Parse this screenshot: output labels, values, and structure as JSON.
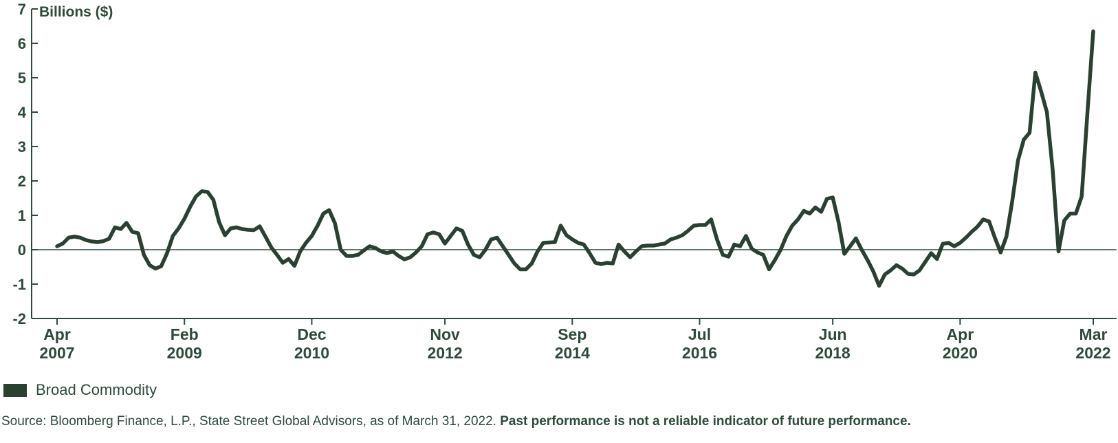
{
  "chart": {
    "axis_title": "Billions ($)"
  },
  "chart_data": {
    "type": "line",
    "title": "Billions ($)",
    "xlabel": "",
    "ylabel": "Billions ($)",
    "ylim": [
      -2,
      7
    ],
    "y_ticks": [
      7,
      6,
      5,
      4,
      3,
      2,
      1,
      0,
      -1,
      -2
    ],
    "grid": false,
    "legend_position": "bottom-left",
    "x_unit": "month",
    "x_range": "Apr 2007 - Mar 2022",
    "x_ticks": [
      {
        "month": "Apr",
        "year": "2007",
        "index": 0
      },
      {
        "month": "Feb",
        "year": "2009",
        "index": 22
      },
      {
        "month": "Dec",
        "year": "2010",
        "index": 44
      },
      {
        "month": "Nov",
        "year": "2012",
        "index": 67
      },
      {
        "month": "Sep",
        "year": "2014",
        "index": 89
      },
      {
        "month": "Jul",
        "year": "2016",
        "index": 111
      },
      {
        "month": "Jun",
        "year": "2018",
        "index": 134
      },
      {
        "month": "Apr",
        "year": "2020",
        "index": 156
      },
      {
        "month": "Mar",
        "year": "2022",
        "index": 179
      }
    ],
    "series": [
      {
        "name": "Broad Commodity",
        "color": "#2a4132",
        "values": [
          0.1,
          0.18,
          0.35,
          0.38,
          0.35,
          0.28,
          0.24,
          0.22,
          0.25,
          0.32,
          0.65,
          0.6,
          0.78,
          0.52,
          0.48,
          -0.15,
          -0.45,
          -0.55,
          -0.48,
          -0.1,
          0.4,
          0.62,
          0.9,
          1.25,
          1.55,
          1.7,
          1.68,
          1.45,
          0.8,
          0.42,
          0.62,
          0.65,
          0.6,
          0.58,
          0.57,
          0.68,
          0.38,
          0.07,
          -0.15,
          -0.38,
          -0.27,
          -0.47,
          -0.05,
          0.2,
          0.4,
          0.7,
          1.05,
          1.15,
          0.77,
          0.0,
          -0.18,
          -0.18,
          -0.15,
          -0.02,
          0.1,
          0.05,
          -0.05,
          -0.1,
          -0.05,
          -0.18,
          -0.28,
          -0.22,
          -0.08,
          0.1,
          0.45,
          0.5,
          0.45,
          0.18,
          0.4,
          0.62,
          0.55,
          0.15,
          -0.15,
          -0.22,
          0.0,
          0.3,
          0.35,
          0.1,
          -0.15,
          -0.4,
          -0.57,
          -0.57,
          -0.4,
          -0.05,
          0.2,
          0.21,
          0.22,
          0.7,
          0.42,
          0.3,
          0.2,
          0.15,
          -0.1,
          -0.38,
          -0.42,
          -0.38,
          -0.4,
          0.15,
          -0.05,
          -0.22,
          -0.05,
          0.1,
          0.12,
          0.12,
          0.15,
          0.18,
          0.3,
          0.35,
          0.42,
          0.55,
          0.7,
          0.72,
          0.72,
          0.88,
          0.3,
          -0.15,
          -0.2,
          0.15,
          0.1,
          0.4,
          0.03,
          -0.08,
          -0.15,
          -0.57,
          -0.3,
          0.0,
          0.4,
          0.7,
          0.88,
          1.13,
          1.05,
          1.23,
          1.1,
          1.48,
          1.52,
          0.8,
          -0.12,
          0.1,
          0.33,
          0.0,
          -0.3,
          -0.63,
          -1.05,
          -0.72,
          -0.6,
          -0.45,
          -0.55,
          -0.7,
          -0.72,
          -0.6,
          -0.35,
          -0.1,
          -0.27,
          0.17,
          0.2,
          0.1,
          0.2,
          0.35,
          0.52,
          0.67,
          0.88,
          0.82,
          0.35,
          -0.08,
          0.38,
          1.4,
          2.6,
          3.2,
          3.4,
          5.15,
          4.6,
          4.0,
          2.3,
          -0.05,
          0.85,
          1.05,
          1.05,
          1.55,
          4.0,
          6.35
        ]
      }
    ]
  },
  "legend": {
    "label": "Broad Commodity",
    "swatch_color": "#2a4132"
  },
  "source": {
    "normal": "Source: Bloomberg Finance, L.P., State Street Global Advisors, as of March 31, 2022. ",
    "bold": "Past performance is not a reliable indicator of future performance."
  },
  "colors": {
    "line": "#2a4132",
    "text": "#2e4a3a",
    "axis": "#2e4a3a",
    "background": "#ffffff"
  }
}
